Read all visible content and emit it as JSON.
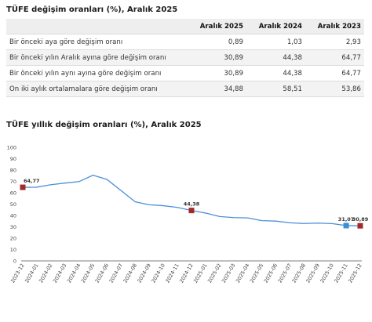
{
  "table": {
    "title": "TÜFE değişim oranları (%), Aralık 2025",
    "columns": [
      "",
      "Aralık 2025",
      "Aralık 2024",
      "Aralık 2023"
    ],
    "rows": [
      {
        "label": "Bir önceki aya göre değişim oranı",
        "values": [
          "0,89",
          "1,03",
          "2,93"
        ]
      },
      {
        "label": "Bir önceki yılın Aralık ayına göre değişim oranı",
        "values": [
          "30,89",
          "44,38",
          "64,77"
        ]
      },
      {
        "label": "Bir önceki yılın aynı ayına göre değişim oranı",
        "values": [
          "30,89",
          "44,38",
          "64,77"
        ]
      },
      {
        "label": "On iki aylık ortalamalara göre değişim oranı",
        "values": [
          "34,88",
          "58,51",
          "53,86"
        ]
      }
    ]
  },
  "chart_data": {
    "type": "line",
    "title": "TÜFE yıllık değişim oranları (%), Aralık 2025",
    "xlabel": "",
    "ylabel": "",
    "ylim": [
      0,
      100
    ],
    "yticks": [
      0,
      10,
      20,
      30,
      40,
      50,
      60,
      70,
      80,
      90,
      100
    ],
    "grid": false,
    "line_color": "#4a90d9",
    "categories": [
      "2023-12",
      "2024-01",
      "2024-02",
      "2024-03",
      "2024-04",
      "2024-05",
      "2024-06",
      "2024-07",
      "2024-08",
      "2024-09",
      "2024-10",
      "2024-11",
      "2024-12",
      "2025-01",
      "2025-02",
      "2025-03",
      "2025-04",
      "2025-05",
      "2025-06",
      "2025-07",
      "2025-08",
      "2025-09",
      "2025-10",
      "2025-11",
      "2025-12"
    ],
    "values": [
      64.77,
      64.86,
      67.07,
      68.5,
      69.8,
      75.45,
      71.6,
      61.78,
      51.97,
      49.38,
      48.58,
      47.09,
      44.38,
      42.12,
      39.05,
      38.1,
      37.86,
      35.41,
      35.05,
      33.52,
      32.95,
      33.29,
      32.87,
      31.07,
      30.89
    ],
    "markers": [
      {
        "index": 0,
        "label": "64,77",
        "color": "#a32a2a"
      },
      {
        "index": 12,
        "label": "44,38",
        "color": "#a32a2a"
      },
      {
        "index": 23,
        "label": "31,07",
        "color": "#3a8fd6"
      },
      {
        "index": 24,
        "label": "30,89",
        "color": "#a32a2a"
      }
    ]
  }
}
